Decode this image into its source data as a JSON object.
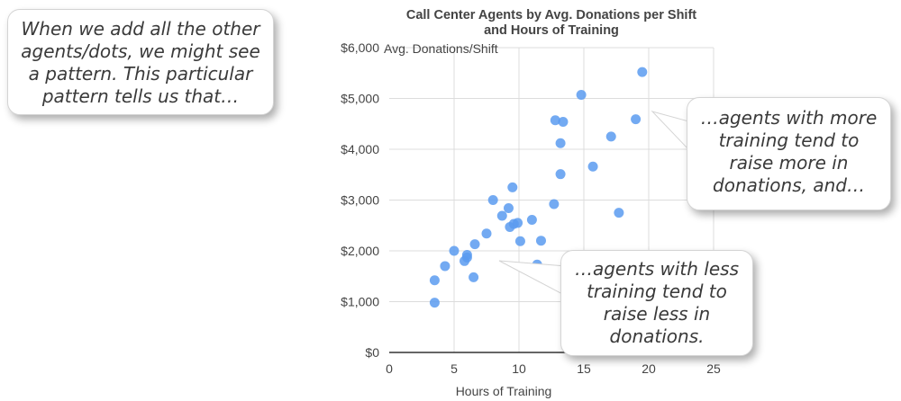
{
  "callouts": {
    "intro": "When we add all the other\nagents/dots, we might see\na pattern. This particular\npattern tells us that…",
    "more_training": "…agents with more\ntraining tend to\nraise more in\ndonations, and…",
    "less_training": "…agents with less\ntraining tend to\nraise less in\ndonations."
  },
  "chart_data": {
    "type": "scatter",
    "title": "Call Center Agents by Avg. Donations per Shift\nand Hours of Training",
    "xlabel": "Hours of Training",
    "ylabel": "Avg. Donations/Shift",
    "xlim": [
      0,
      25
    ],
    "ylim": [
      0,
      6000
    ],
    "xticks": [
      0,
      5,
      10,
      15,
      20,
      25
    ],
    "yticks": [
      0,
      1000,
      2000,
      3000,
      4000,
      5000,
      6000
    ],
    "ytick_labels": [
      "$0",
      "$1,000",
      "$2,000",
      "$3,000",
      "$4,000",
      "$5,000",
      "$6,000"
    ],
    "grid": true,
    "point_color": "#5b9bf0",
    "points": [
      {
        "x": 3.5,
        "y": 980
      },
      {
        "x": 3.5,
        "y": 1420
      },
      {
        "x": 4.3,
        "y": 1700
      },
      {
        "x": 5.0,
        "y": 2000
      },
      {
        "x": 5.8,
        "y": 1800
      },
      {
        "x": 6.0,
        "y": 1870
      },
      {
        "x": 6.0,
        "y": 1920
      },
      {
        "x": 6.5,
        "y": 1480
      },
      {
        "x": 6.6,
        "y": 2130
      },
      {
        "x": 7.5,
        "y": 2340
      },
      {
        "x": 8.0,
        "y": 3000
      },
      {
        "x": 8.7,
        "y": 2690
      },
      {
        "x": 9.2,
        "y": 2840
      },
      {
        "x": 9.3,
        "y": 2470
      },
      {
        "x": 9.5,
        "y": 3250
      },
      {
        "x": 9.6,
        "y": 2530
      },
      {
        "x": 9.9,
        "y": 2550
      },
      {
        "x": 10.1,
        "y": 2190
      },
      {
        "x": 11.0,
        "y": 2610
      },
      {
        "x": 11.4,
        "y": 1730
      },
      {
        "x": 11.7,
        "y": 2200
      },
      {
        "x": 12.7,
        "y": 2920
      },
      {
        "x": 12.8,
        "y": 4570
      },
      {
        "x": 13.2,
        "y": 3510
      },
      {
        "x": 13.2,
        "y": 4120
      },
      {
        "x": 13.4,
        "y": 4540
      },
      {
        "x": 14.8,
        "y": 5070
      },
      {
        "x": 15.7,
        "y": 3660
      },
      {
        "x": 17.1,
        "y": 4250
      },
      {
        "x": 17.7,
        "y": 2750
      },
      {
        "x": 19.0,
        "y": 4590
      },
      {
        "x": 19.5,
        "y": 5520
      }
    ]
  }
}
